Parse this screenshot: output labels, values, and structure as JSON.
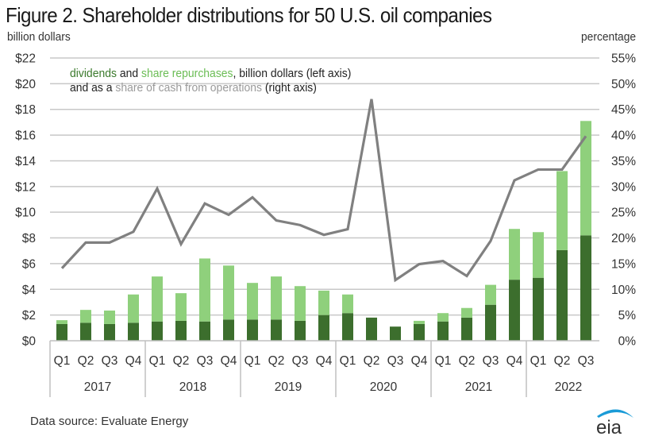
{
  "title": "Figure 2. Shareholder distributions for 50 U.S. oil companies",
  "left_unit": "billion dollars",
  "right_unit": "percentage",
  "legend": {
    "line1": {
      "dividends": "dividends",
      "and": " and ",
      "repurchases": "share repurchases",
      "rest": ", billion dollars (left axis)"
    },
    "line2": {
      "prefix": "and as a ",
      "share": "share of cash from operations",
      "rest": " (right axis)"
    }
  },
  "source": "Data source: Evaluate  Energy",
  "logo": "eia",
  "colors": {
    "dividends": "#3c6e2d",
    "repurchases": "#8fd07c",
    "share_line": "#808080",
    "gridline": "#c8c8c8",
    "logo_arc": "#1a9bd7"
  },
  "chart_data": {
    "type": "bar",
    "title": "Figure 2. Shareholder distributions for 50 U.S. oil companies",
    "xlabel": "",
    "ylabel": "billion dollars",
    "y2label": "percentage",
    "ylim": [
      0,
      22
    ],
    "y2lim": [
      0,
      55
    ],
    "grid": true,
    "legend_position": "top-left",
    "yticks": [
      "$0",
      "$2",
      "$4",
      "$6",
      "$8",
      "$10",
      "$12",
      "$14",
      "$16",
      "$18",
      "$20",
      "$22"
    ],
    "y2ticks": [
      "0%",
      "5%",
      "10%",
      "15%",
      "20%",
      "25%",
      "30%",
      "35%",
      "40%",
      "45%",
      "50%",
      "55%"
    ],
    "years": [
      {
        "label": "2017",
        "quarters": 4
      },
      {
        "label": "2018",
        "quarters": 4
      },
      {
        "label": "2019",
        "quarters": 4
      },
      {
        "label": "2020",
        "quarters": 4
      },
      {
        "label": "2021",
        "quarters": 4
      },
      {
        "label": "2022",
        "quarters": 3
      }
    ],
    "categories": [
      "Q1",
      "Q2",
      "Q3",
      "Q4",
      "Q1",
      "Q2",
      "Q3",
      "Q4",
      "Q1",
      "Q2",
      "Q3",
      "Q4",
      "Q1",
      "Q2",
      "Q3",
      "Q4",
      "Q1",
      "Q2",
      "Q3",
      "Q4",
      "Q1",
      "Q2",
      "Q3"
    ],
    "series": [
      {
        "name": "dividends",
        "type": "stacked-bar",
        "axis": "left",
        "values": [
          1.3,
          1.4,
          1.3,
          1.4,
          1.5,
          1.55,
          1.5,
          1.65,
          1.65,
          1.65,
          1.55,
          2.0,
          2.15,
          1.8,
          1.1,
          1.3,
          1.5,
          1.8,
          2.8,
          4.75,
          4.9,
          7.05,
          8.2
        ]
      },
      {
        "name": "share repurchases",
        "type": "stacked-bar",
        "axis": "left",
        "values": [
          0.3,
          1.0,
          1.05,
          2.2,
          3.5,
          2.15,
          4.9,
          4.2,
          2.85,
          3.35,
          2.7,
          1.9,
          1.45,
          0.0,
          0.0,
          0.25,
          0.65,
          0.75,
          1.55,
          3.95,
          3.55,
          6.15,
          8.9
        ]
      },
      {
        "name": "share of cash from operations",
        "type": "line",
        "axis": "right",
        "values": [
          14.1,
          19.1,
          19.1,
          21.2,
          29.6,
          18.8,
          26.7,
          24.5,
          27.9,
          23.4,
          22.5,
          20.6,
          21.7,
          47.0,
          11.8,
          14.9,
          15.5,
          12.6,
          19.4,
          31.2,
          33.3,
          33.3,
          39.8
        ]
      }
    ]
  }
}
